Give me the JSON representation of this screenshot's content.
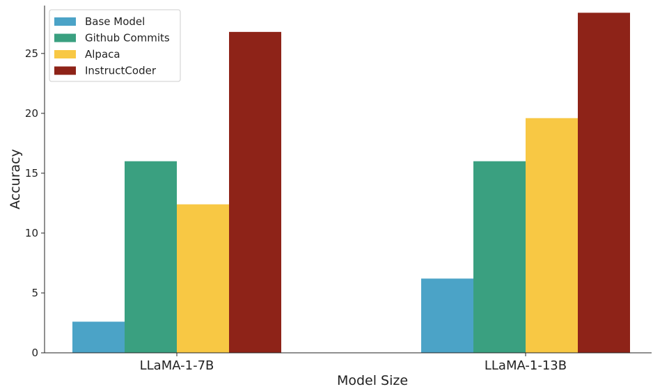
{
  "chart_data": {
    "type": "bar",
    "xlabel": "Model Size",
    "ylabel": "Accuracy",
    "categories": [
      "LLaMA-1-7B",
      "LLaMA-1-13B"
    ],
    "ylim": [
      0,
      29
    ],
    "yticks": [
      0,
      5,
      10,
      15,
      20,
      25
    ],
    "legend_position": "top-left",
    "grid": false,
    "series": [
      {
        "name": "Base Model",
        "color": "#4ba3c7",
        "values": [
          2.6,
          6.2
        ]
      },
      {
        "name": "Github Commits",
        "color": "#3aa080",
        "values": [
          16.0,
          16.0
        ]
      },
      {
        "name": "Alpaca",
        "color": "#f8c844",
        "values": [
          12.4,
          19.6
        ]
      },
      {
        "name": "InstructCoder",
        "color": "#8e2318",
        "values": [
          26.8,
          28.4
        ]
      }
    ]
  }
}
